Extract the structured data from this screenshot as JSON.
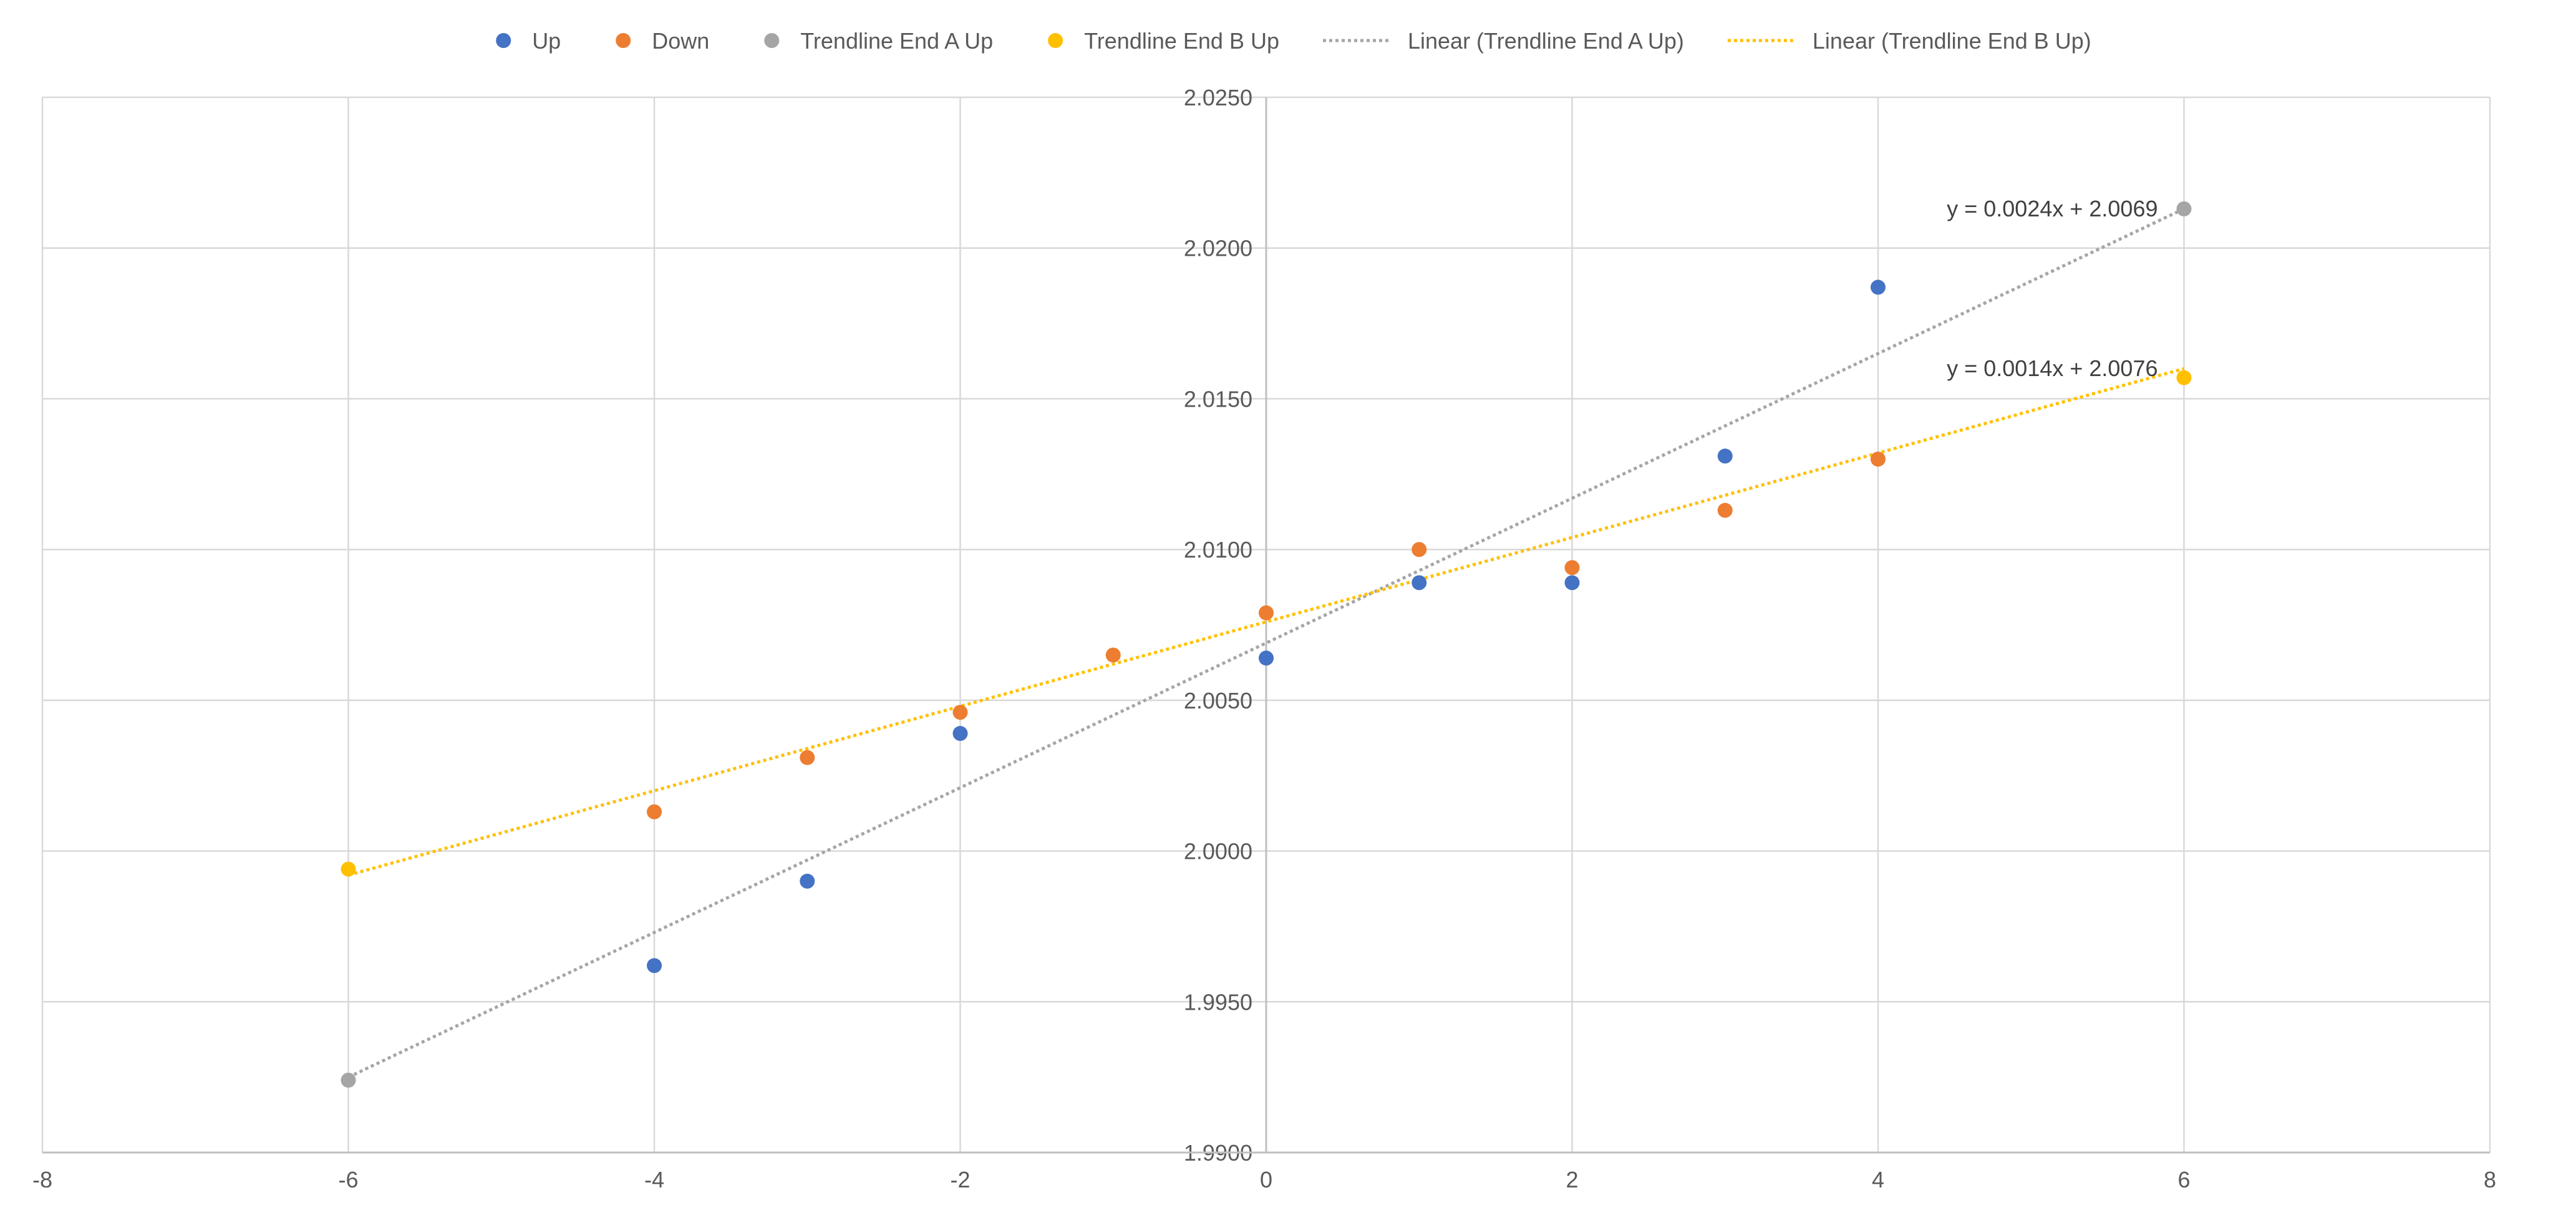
{
  "chart_data": {
    "type": "scatter",
    "title": "",
    "xlabel": "",
    "ylabel": "",
    "xlim": [
      -8,
      8
    ],
    "ylim": [
      1.99,
      2.025
    ],
    "x_ticks": [
      -8,
      -6,
      -4,
      -2,
      0,
      2,
      4,
      6,
      8
    ],
    "y_ticks": [
      1.99,
      1.995,
      2.0,
      2.005,
      2.01,
      2.015,
      2.02,
      2.025
    ],
    "y_tick_labels": [
      "1.9900",
      "1.9950",
      "2.0000",
      "2.0050",
      "2.0100",
      "2.0150",
      "2.0200",
      "2.0250"
    ],
    "x_tick_labels": [
      "-8",
      "-6",
      "-4",
      "-2",
      "0",
      "2",
      "4",
      "6",
      "8"
    ],
    "grid": true,
    "legend_position": "top",
    "series": [
      {
        "name": "Up",
        "color": "#4472C4",
        "kind": "marker",
        "points": [
          [
            -4,
            1.9962
          ],
          [
            -3,
            1.999
          ],
          [
            -2,
            2.0039
          ],
          [
            0,
            2.0064
          ],
          [
            1,
            2.0089
          ],
          [
            2,
            2.0089
          ],
          [
            3,
            2.0131
          ],
          [
            4,
            2.0187
          ]
        ]
      },
      {
        "name": "Down",
        "color": "#ED7D31",
        "kind": "marker",
        "points": [
          [
            -4,
            2.0013
          ],
          [
            -3,
            2.0031
          ],
          [
            -2,
            2.0046
          ],
          [
            -1,
            2.0065
          ],
          [
            0,
            2.0079
          ],
          [
            1,
            2.01
          ],
          [
            2,
            2.0094
          ],
          [
            3,
            2.0113
          ],
          [
            4,
            2.013
          ]
        ]
      },
      {
        "name": "Trendline End A Up",
        "color": "#A5A5A5",
        "kind": "marker",
        "points": [
          [
            -6,
            1.9924
          ],
          [
            6,
            2.0213
          ]
        ]
      },
      {
        "name": "Trendline End B Up",
        "color": "#FFC000",
        "kind": "marker",
        "points": [
          [
            -6,
            1.9994
          ],
          [
            6,
            2.0157
          ]
        ]
      },
      {
        "name": "Linear (Trendline End A Up)",
        "color": "#A5A5A5",
        "kind": "trendline",
        "slope": 0.0024,
        "intercept": 2.0069,
        "x_range": [
          -6,
          6
        ],
        "equation": "y = 0.0024x + 2.0069"
      },
      {
        "name": "Linear (Trendline End B Up)",
        "color": "#FFC000",
        "kind": "trendline",
        "slope": 0.0014,
        "intercept": 2.0076,
        "x_range": [
          -6,
          6
        ],
        "equation": "y = 0.0014x + 2.0076"
      }
    ]
  }
}
